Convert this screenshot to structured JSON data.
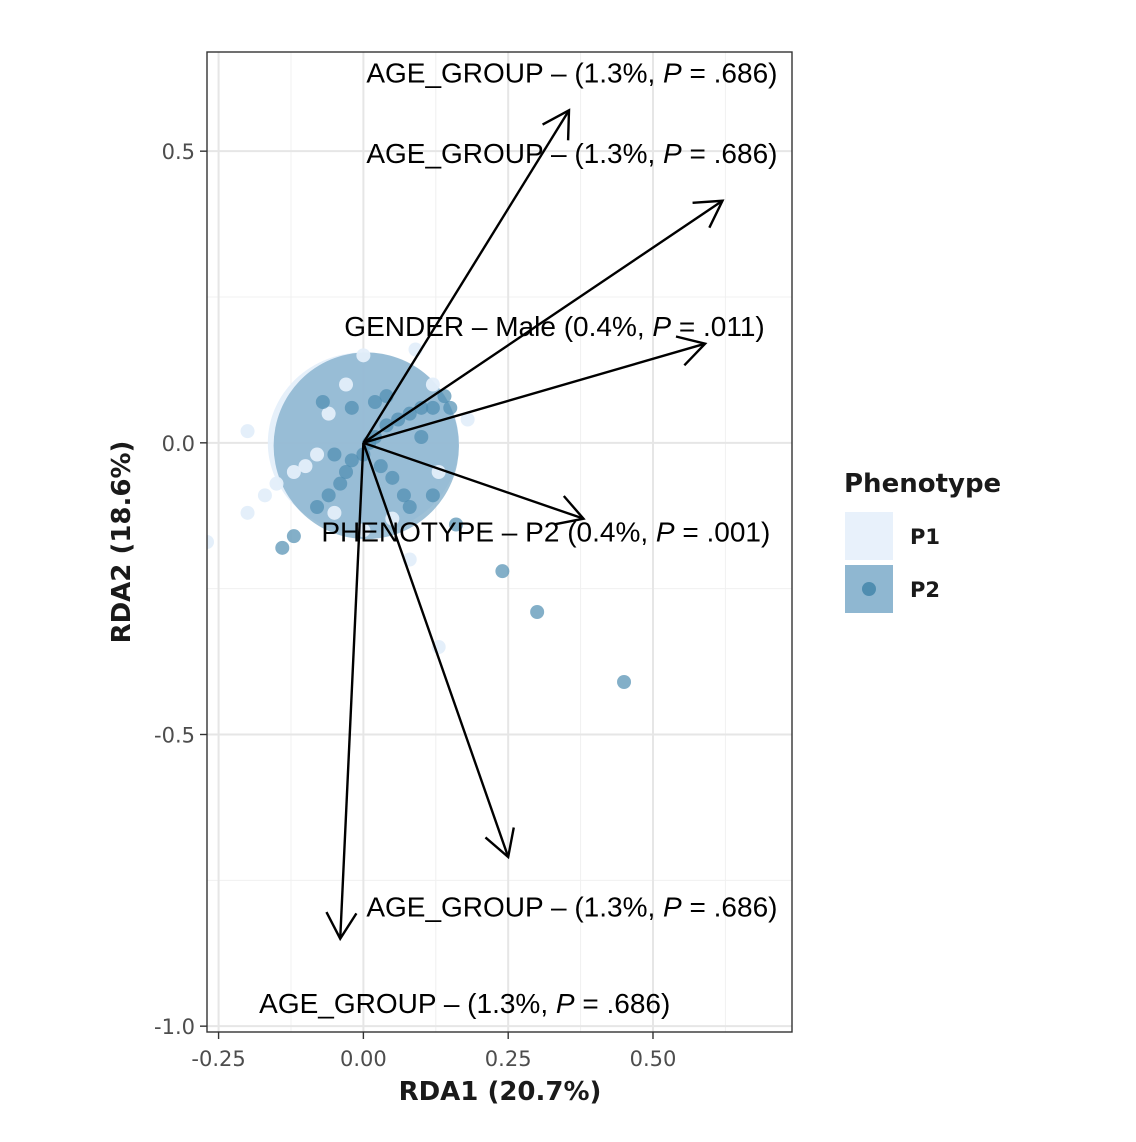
{
  "chart_data": {
    "type": "scatter",
    "subtype": "rda-biplot",
    "title": "",
    "xlabel": "RDA1 (20.7%)",
    "ylabel": "RDA2 (18.6%)",
    "xlim": [
      -0.27,
      0.74
    ],
    "ylim": [
      -1.01,
      0.67
    ],
    "xticks": [
      -0.25,
      0.0,
      0.25,
      0.5
    ],
    "xtick_labels": [
      "-0.25",
      "0.00",
      "0.25",
      "0.50"
    ],
    "yticks": [
      -1.0,
      -0.5,
      0.0,
      0.5
    ],
    "ytick_labels": [
      "-1.0",
      "-0.5",
      "0.0",
      "0.5"
    ],
    "grid": true,
    "legend": {
      "title": "Phenotype",
      "position": "right",
      "entries": [
        {
          "label": "P1",
          "color": "#e8f1fb"
        },
        {
          "label": "P2",
          "color": "#4f8db0"
        }
      ]
    },
    "ellipses": [
      {
        "group": "P1",
        "center": [
          0.0,
          0.0
        ],
        "rx": 0.165,
        "ry": 0.155,
        "color": "#e3eefa"
      },
      {
        "group": "P2",
        "center": [
          0.005,
          -0.005
        ],
        "rx": 0.16,
        "ry": 0.16,
        "color": "#7aa9c8"
      }
    ],
    "series": [
      {
        "name": "P1",
        "color": "#e3eefa",
        "points": [
          [
            -0.27,
            -0.17
          ],
          [
            -0.2,
            -0.12
          ],
          [
            -0.17,
            -0.09
          ],
          [
            -0.15,
            -0.07
          ],
          [
            -0.12,
            -0.05
          ],
          [
            -0.1,
            -0.04
          ],
          [
            -0.08,
            -0.02
          ],
          [
            -0.06,
            0.05
          ],
          [
            -0.03,
            0.1
          ],
          [
            0.0,
            0.15
          ],
          [
            0.09,
            0.16
          ],
          [
            0.12,
            0.1
          ],
          [
            0.18,
            0.04
          ],
          [
            0.13,
            -0.05
          ],
          [
            0.05,
            -0.13
          ],
          [
            0.0,
            -0.15
          ],
          [
            -0.05,
            -0.12
          ],
          [
            0.13,
            -0.35
          ],
          [
            0.08,
            -0.2
          ],
          [
            -0.2,
            0.02
          ]
        ]
      },
      {
        "name": "P2",
        "color": "#4f8db0",
        "points": [
          [
            -0.14,
            -0.18
          ],
          [
            -0.12,
            -0.16
          ],
          [
            -0.08,
            -0.11
          ],
          [
            -0.06,
            -0.09
          ],
          [
            -0.04,
            -0.07
          ],
          [
            -0.03,
            -0.05
          ],
          [
            -0.02,
            -0.03
          ],
          [
            0.0,
            -0.02
          ],
          [
            0.01,
            0.0
          ],
          [
            0.02,
            0.01
          ],
          [
            0.04,
            0.03
          ],
          [
            0.06,
            0.04
          ],
          [
            0.08,
            0.05
          ],
          [
            0.1,
            0.06
          ],
          [
            0.12,
            0.06
          ],
          [
            0.14,
            0.08
          ],
          [
            0.15,
            0.06
          ],
          [
            0.02,
            0.07
          ],
          [
            -0.02,
            0.06
          ],
          [
            0.03,
            -0.04
          ],
          [
            0.05,
            -0.06
          ],
          [
            0.07,
            -0.09
          ],
          [
            0.12,
            -0.09
          ],
          [
            0.08,
            -0.11
          ],
          [
            0.16,
            -0.14
          ],
          [
            0.24,
            -0.22
          ],
          [
            0.3,
            -0.29
          ],
          [
            0.45,
            -0.41
          ],
          [
            -0.07,
            0.07
          ],
          [
            0.1,
            0.01
          ],
          [
            -0.05,
            -0.02
          ],
          [
            0.04,
            0.08
          ]
        ]
      }
    ],
    "arrows": [
      {
        "from": [
          0.0,
          0.0
        ],
        "to": [
          0.355,
          0.57
        ]
      },
      {
        "from": [
          0.0,
          0.0
        ],
        "to": [
          0.62,
          0.415
        ]
      },
      {
        "from": [
          0.0,
          0.0
        ],
        "to": [
          0.59,
          0.17
        ]
      },
      {
        "from": [
          0.0,
          0.0
        ],
        "to": [
          0.38,
          -0.13
        ]
      },
      {
        "from": [
          0.0,
          0.0
        ],
        "to": [
          0.25,
          -0.71
        ]
      },
      {
        "from": [
          0.0,
          0.0
        ],
        "to": [
          -0.04,
          -0.85
        ]
      }
    ],
    "annotations": [
      {
        "label_prefix": "AGE_GROUP –  (1.3%, ",
        "p": "P",
        "label_suffix": " = .686)",
        "x": 0.36,
        "y": 0.635
      },
      {
        "label_prefix": "AGE_GROUP –  (1.3%, ",
        "p": "P",
        "label_suffix": " = .686)",
        "x": 0.36,
        "y": 0.497
      },
      {
        "label_prefix": "GENDER – Male (0.4%, ",
        "p": "P",
        "label_suffix": " = .011)",
        "x": 0.33,
        "y": 0.2
      },
      {
        "label_prefix": "PHENOTYPE – P2 (0.4%, ",
        "p": "P",
        "label_suffix": " = .001)",
        "x": 0.315,
        "y": -0.152
      },
      {
        "label_prefix": "AGE_GROUP –  (1.3%, ",
        "p": "P",
        "label_suffix": " = .686)",
        "x": 0.36,
        "y": -0.795
      },
      {
        "label_prefix": "AGE_GROUP –  (1.3%, ",
        "p": "P",
        "label_suffix": " = .686)",
        "x": 0.175,
        "y": -0.96
      }
    ]
  }
}
